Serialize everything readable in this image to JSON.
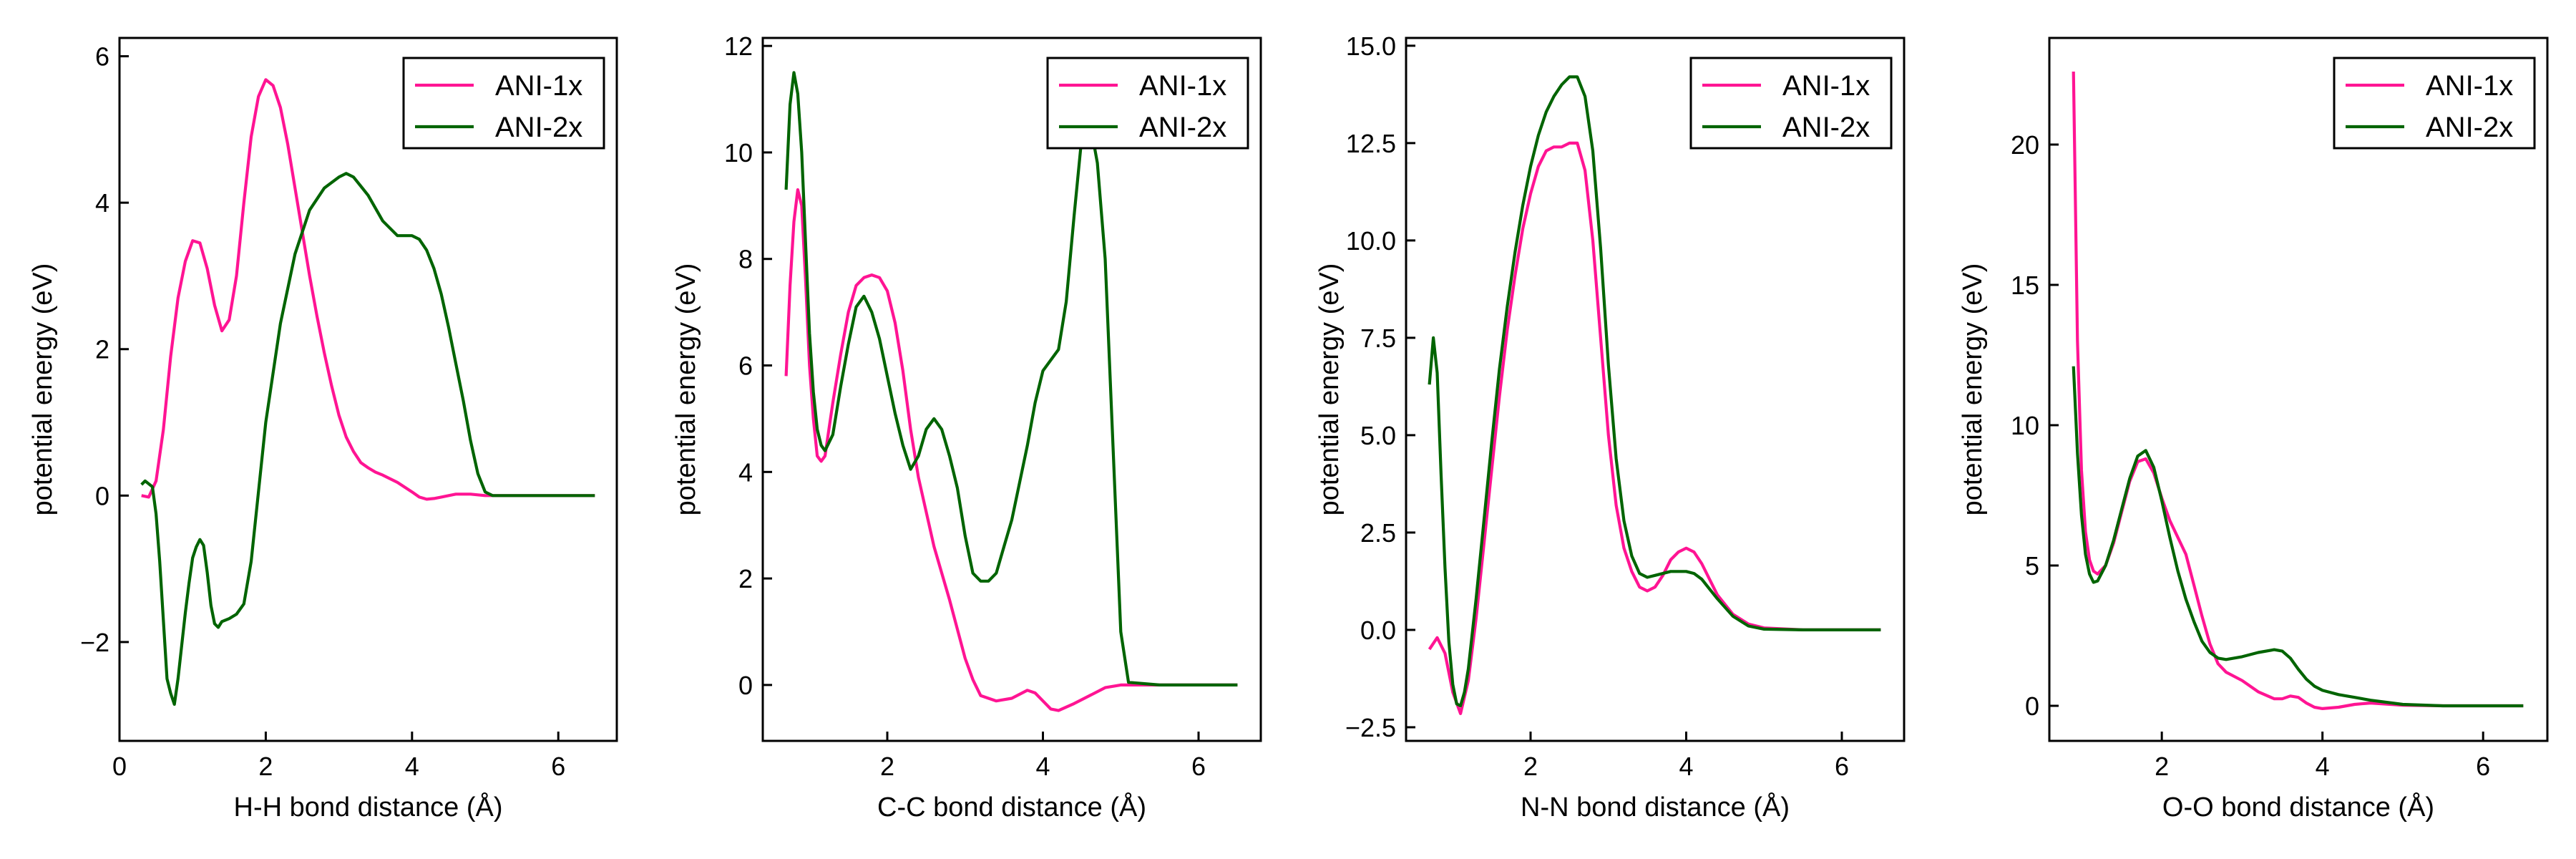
{
  "series_colors": {
    "ANI-1x": "#ff1493",
    "ANI-2x": "#006400"
  },
  "chart_data": [
    {
      "type": "line",
      "xlabel": "H-H bond distance (Å)",
      "ylabel": "potential energy (eV)",
      "xlim": [
        0,
        6.8
      ],
      "ylim": [
        -3.35,
        6.25
      ],
      "xticks": [
        0,
        2,
        4,
        6
      ],
      "xtick_labels": [
        "0",
        "2",
        "4",
        "6"
      ],
      "yticks": [
        -2,
        0,
        2,
        4,
        6
      ],
      "ytick_labels": [
        "−2",
        "0",
        "2",
        "4",
        "6"
      ],
      "legend": "top-right",
      "series": [
        {
          "name": "ANI-1x",
          "x": [
            0.3,
            0.4,
            0.5,
            0.6,
            0.7,
            0.8,
            0.9,
            1.0,
            1.1,
            1.2,
            1.3,
            1.4,
            1.5,
            1.6,
            1.7,
            1.8,
            1.9,
            2.0,
            2.1,
            2.2,
            2.3,
            2.4,
            2.5,
            2.6,
            2.7,
            2.8,
            2.9,
            3.0,
            3.1,
            3.2,
            3.3,
            3.4,
            3.5,
            3.6,
            3.8,
            4.0,
            4.1,
            4.2,
            4.3,
            4.4,
            4.6,
            4.8,
            5.0,
            5.5,
            6.0,
            6.5
          ],
          "y": [
            0,
            -0.02,
            0.2,
            0.9,
            1.9,
            2.7,
            3.2,
            3.48,
            3.45,
            3.1,
            2.6,
            2.25,
            2.4,
            3.0,
            4.0,
            4.9,
            5.45,
            5.68,
            5.6,
            5.3,
            4.8,
            4.2,
            3.6,
            3.0,
            2.45,
            1.95,
            1.5,
            1.1,
            0.8,
            0.6,
            0.45,
            0.38,
            0.32,
            0.28,
            0.18,
            0.05,
            -0.02,
            -0.05,
            -0.04,
            -0.02,
            0.02,
            0.02,
            0,
            0,
            0,
            0
          ]
        },
        {
          "name": "ANI-2x",
          "x": [
            0.3,
            0.35,
            0.45,
            0.5,
            0.55,
            0.6,
            0.65,
            0.7,
            0.75,
            0.8,
            0.85,
            0.9,
            0.95,
            1.0,
            1.05,
            1.1,
            1.15,
            1.2,
            1.25,
            1.3,
            1.35,
            1.4,
            1.5,
            1.6,
            1.7,
            1.8,
            1.9,
            2.0,
            2.2,
            2.4,
            2.6,
            2.8,
            3.0,
            3.1,
            3.2,
            3.4,
            3.6,
            3.8,
            4.0,
            4.1,
            4.2,
            4.3,
            4.4,
            4.5,
            4.6,
            4.7,
            4.8,
            4.9,
            5.0,
            5.1,
            5.5,
            6.0,
            6.5
          ],
          "y": [
            0.15,
            0.2,
            0.12,
            -0.25,
            -0.9,
            -1.7,
            -2.5,
            -2.7,
            -2.85,
            -2.5,
            -2.05,
            -1.6,
            -1.2,
            -0.85,
            -0.7,
            -0.6,
            -0.68,
            -1.05,
            -1.5,
            -1.75,
            -1.8,
            -1.72,
            -1.68,
            -1.62,
            -1.48,
            -0.9,
            0.05,
            1.0,
            2.35,
            3.3,
            3.9,
            4.2,
            4.35,
            4.4,
            4.35,
            4.1,
            3.75,
            3.55,
            3.55,
            3.5,
            3.35,
            3.1,
            2.75,
            2.3,
            1.8,
            1.3,
            0.75,
            0.3,
            0.05,
            0,
            0,
            0,
            0
          ]
        }
      ]
    },
    {
      "type": "line",
      "xlabel": "C-C bond distance (Å)",
      "ylabel": "potential energy (eV)",
      "xlim": [
        0.4,
        6.8
      ],
      "ylim": [
        -1.05,
        12.15
      ],
      "xticks": [
        2,
        4,
        6
      ],
      "xtick_labels": [
        "2",
        "4",
        "6"
      ],
      "yticks": [
        0,
        2,
        4,
        6,
        8,
        10,
        12
      ],
      "ytick_labels": [
        "0",
        "2",
        "4",
        "6",
        "8",
        "10",
        "12"
      ],
      "legend": "top-right",
      "series": [
        {
          "name": "ANI-1x",
          "x": [
            0.7,
            0.75,
            0.8,
            0.85,
            0.9,
            0.95,
            1.0,
            1.05,
            1.1,
            1.15,
            1.2,
            1.25,
            1.3,
            1.4,
            1.5,
            1.6,
            1.7,
            1.8,
            1.9,
            2.0,
            2.1,
            2.2,
            2.3,
            2.4,
            2.6,
            2.8,
            3.0,
            3.1,
            3.2,
            3.4,
            3.6,
            3.8,
            3.9,
            4.0,
            4.1,
            4.2,
            4.4,
            4.6,
            4.8,
            5.0,
            5.5,
            6.0,
            6.5
          ],
          "y": [
            5.8,
            7.5,
            8.7,
            9.3,
            9.0,
            7.6,
            6.0,
            5.0,
            4.3,
            4.2,
            4.3,
            4.8,
            5.3,
            6.2,
            7.0,
            7.5,
            7.65,
            7.7,
            7.65,
            7.4,
            6.8,
            5.9,
            4.8,
            3.9,
            2.6,
            1.6,
            0.5,
            0.1,
            -0.2,
            -0.3,
            -0.25,
            -0.1,
            -0.15,
            -0.3,
            -0.45,
            -0.48,
            -0.35,
            -0.2,
            -0.05,
            0,
            0,
            0,
            0
          ]
        },
        {
          "name": "ANI-2x",
          "x": [
            0.7,
            0.75,
            0.8,
            0.85,
            0.9,
            0.95,
            1.0,
            1.05,
            1.1,
            1.15,
            1.2,
            1.3,
            1.4,
            1.5,
            1.6,
            1.7,
            1.8,
            1.9,
            2.0,
            2.1,
            2.2,
            2.3,
            2.4,
            2.5,
            2.6,
            2.7,
            2.8,
            2.9,
            3.0,
            3.1,
            3.2,
            3.3,
            3.4,
            3.5,
            3.6,
            3.7,
            3.8,
            3.9,
            4.0,
            4.1,
            4.2,
            4.3,
            4.4,
            4.5,
            4.6,
            4.7,
            4.8,
            4.9,
            5.0,
            5.1,
            5.5,
            6.0,
            6.5
          ],
          "y": [
            9.3,
            10.9,
            11.5,
            11.1,
            10.0,
            8.3,
            6.6,
            5.5,
            4.8,
            4.5,
            4.4,
            4.7,
            5.6,
            6.4,
            7.1,
            7.3,
            7.0,
            6.5,
            5.8,
            5.1,
            4.5,
            4.05,
            4.3,
            4.8,
            5.0,
            4.8,
            4.3,
            3.7,
            2.8,
            2.1,
            1.95,
            1.95,
            2.1,
            2.6,
            3.1,
            3.8,
            4.5,
            5.3,
            5.9,
            6.1,
            6.3,
            7.2,
            8.8,
            10.3,
            10.6,
            9.8,
            8.0,
            4.5,
            1.0,
            0.05,
            0,
            0,
            0
          ]
        }
      ]
    },
    {
      "type": "line",
      "xlabel": "N-N bond distance (Å)",
      "ylabel": "potential energy (eV)",
      "xlim": [
        0.4,
        6.8
      ],
      "ylim": [
        -2.85,
        15.2
      ],
      "xticks": [
        2,
        4,
        6
      ],
      "xtick_labels": [
        "2",
        "4",
        "6"
      ],
      "yticks": [
        -2.5,
        0,
        2.5,
        5,
        7.5,
        10,
        12.5,
        15
      ],
      "ytick_labels": [
        "−2.5",
        "0.0",
        "2.5",
        "5.0",
        "7.5",
        "10.0",
        "12.5",
        "15.0"
      ],
      "legend": "top-right",
      "series": [
        {
          "name": "ANI-1x",
          "x": [
            0.7,
            0.8,
            0.9,
            1.0,
            1.1,
            1.2,
            1.3,
            1.4,
            1.5,
            1.6,
            1.7,
            1.8,
            1.9,
            2.0,
            2.1,
            2.2,
            2.3,
            2.4,
            2.5,
            2.6,
            2.7,
            2.8,
            2.9,
            3.0,
            3.1,
            3.2,
            3.3,
            3.4,
            3.5,
            3.6,
            3.7,
            3.8,
            3.9,
            4.0,
            4.1,
            4.2,
            4.3,
            4.4,
            4.6,
            4.8,
            5.0,
            5.5,
            6.0,
            6.5
          ],
          "y": [
            -0.5,
            -0.2,
            -0.6,
            -1.6,
            -2.15,
            -1.3,
            0.3,
            2.2,
            4.1,
            6.0,
            7.7,
            9.1,
            10.3,
            11.2,
            11.9,
            12.3,
            12.4,
            12.4,
            12.5,
            12.5,
            11.8,
            10.0,
            7.5,
            5.0,
            3.2,
            2.1,
            1.5,
            1.1,
            1.0,
            1.1,
            1.4,
            1.8,
            2.0,
            2.1,
            2.0,
            1.7,
            1.3,
            0.9,
            0.4,
            0.15,
            0.05,
            0,
            0,
            0
          ]
        },
        {
          "name": "ANI-2x",
          "x": [
            0.7,
            0.75,
            0.8,
            0.85,
            0.9,
            0.95,
            1.0,
            1.05,
            1.1,
            1.15,
            1.2,
            1.3,
            1.4,
            1.5,
            1.6,
            1.7,
            1.8,
            1.9,
            2.0,
            2.1,
            2.2,
            2.3,
            2.4,
            2.5,
            2.6,
            2.7,
            2.8,
            2.9,
            3.0,
            3.1,
            3.2,
            3.3,
            3.4,
            3.5,
            3.6,
            3.7,
            3.8,
            3.9,
            4.0,
            4.1,
            4.2,
            4.3,
            4.4,
            4.6,
            4.8,
            5.0,
            5.5,
            6.0,
            6.5
          ],
          "y": [
            6.3,
            7.5,
            6.6,
            4.0,
            1.6,
            -0.3,
            -1.4,
            -1.9,
            -1.95,
            -1.6,
            -1.0,
            0.8,
            2.8,
            4.8,
            6.7,
            8.3,
            9.7,
            10.9,
            11.9,
            12.7,
            13.3,
            13.7,
            14.0,
            14.2,
            14.2,
            13.7,
            12.3,
            9.8,
            6.8,
            4.4,
            2.8,
            1.9,
            1.45,
            1.35,
            1.4,
            1.45,
            1.5,
            1.5,
            1.5,
            1.45,
            1.3,
            1.05,
            0.8,
            0.35,
            0.1,
            0.02,
            0,
            0,
            0
          ]
        }
      ]
    },
    {
      "type": "line",
      "xlabel": "O-O bond distance (Å)",
      "ylabel": "potential energy (eV)",
      "xlim": [
        0.6,
        6.8
      ],
      "ylim": [
        -1.25,
        23.8
      ],
      "xticks": [
        2,
        4,
        6
      ],
      "xtick_labels": [
        "2",
        "4",
        "6"
      ],
      "yticks": [
        0,
        5,
        10,
        15,
        20
      ],
      "ytick_labels": [
        "0",
        "5",
        "10",
        "15",
        "20"
      ],
      "legend": "top-right",
      "series": [
        {
          "name": "ANI-1x",
          "x": [
            0.9,
            0.95,
            1.0,
            1.05,
            1.1,
            1.15,
            1.2,
            1.3,
            1.4,
            1.5,
            1.6,
            1.7,
            1.8,
            1.9,
            2.0,
            2.1,
            2.2,
            2.3,
            2.4,
            2.5,
            2.6,
            2.7,
            2.8,
            3.0,
            3.2,
            3.4,
            3.5,
            3.6,
            3.7,
            3.8,
            3.9,
            4.0,
            4.2,
            4.4,
            4.6,
            5.0,
            5.5,
            6.0,
            6.5
          ],
          "y": [
            22.6,
            13.0,
            8.4,
            6.2,
            5.2,
            4.8,
            4.7,
            5.0,
            5.8,
            6.9,
            8.0,
            8.7,
            8.8,
            8.3,
            7.4,
            6.6,
            6.0,
            5.4,
            4.3,
            3.2,
            2.2,
            1.5,
            1.2,
            0.9,
            0.5,
            0.25,
            0.25,
            0.35,
            0.3,
            0.1,
            -0.05,
            -0.1,
            -0.05,
            0.05,
            0.1,
            0.02,
            0,
            0,
            0
          ]
        },
        {
          "name": "ANI-2x",
          "x": [
            0.9,
            0.95,
            1.0,
            1.05,
            1.1,
            1.15,
            1.2,
            1.3,
            1.4,
            1.5,
            1.6,
            1.7,
            1.8,
            1.9,
            2.0,
            2.1,
            2.2,
            2.3,
            2.4,
            2.5,
            2.6,
            2.7,
            2.8,
            3.0,
            3.2,
            3.4,
            3.5,
            3.6,
            3.7,
            3.8,
            3.9,
            4.0,
            4.2,
            4.4,
            4.6,
            5.0,
            5.5,
            6.0,
            6.5
          ],
          "y": [
            12.1,
            9.0,
            6.8,
            5.4,
            4.7,
            4.4,
            4.45,
            5.0,
            5.9,
            7.0,
            8.1,
            8.9,
            9.1,
            8.5,
            7.3,
            6.0,
            4.8,
            3.8,
            3.0,
            2.3,
            1.9,
            1.7,
            1.65,
            1.75,
            1.9,
            2.0,
            1.95,
            1.7,
            1.3,
            0.95,
            0.7,
            0.55,
            0.4,
            0.3,
            0.2,
            0.05,
            0,
            0,
            0
          ]
        }
      ]
    }
  ]
}
